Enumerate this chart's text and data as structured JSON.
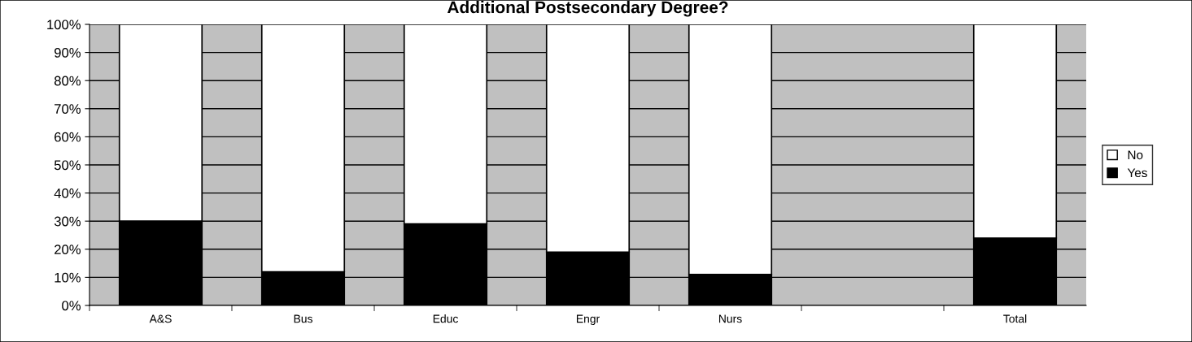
{
  "chart_data": {
    "type": "bar",
    "title": "Additional Postsecondary Degree?",
    "categories": [
      "A&S",
      "Bus",
      "Educ",
      "Engr",
      "Nurs",
      null,
      "Total"
    ],
    "stacked": true,
    "series": [
      {
        "name": "Yes",
        "color": "#000000",
        "values": [
          30,
          12,
          29,
          19,
          11,
          null,
          24
        ]
      },
      {
        "name": "No",
        "color": "#ffffff",
        "values": [
          70,
          88,
          71,
          81,
          89,
          null,
          76
        ]
      }
    ],
    "ylim": [
      0,
      100
    ],
    "yticks": [
      {
        "value": 0,
        "label": "0%"
      },
      {
        "value": 10,
        "label": "10%"
      },
      {
        "value": 20,
        "label": "20%"
      },
      {
        "value": 30,
        "label": "30%"
      },
      {
        "value": 40,
        "label": "40%"
      },
      {
        "value": 50,
        "label": "50%"
      },
      {
        "value": 60,
        "label": "60%"
      },
      {
        "value": 70,
        "label": "70%"
      },
      {
        "value": 80,
        "label": "80%"
      },
      {
        "value": 90,
        "label": "90%"
      },
      {
        "value": 100,
        "label": "100%"
      }
    ],
    "grid": "y",
    "legend": "right"
  }
}
